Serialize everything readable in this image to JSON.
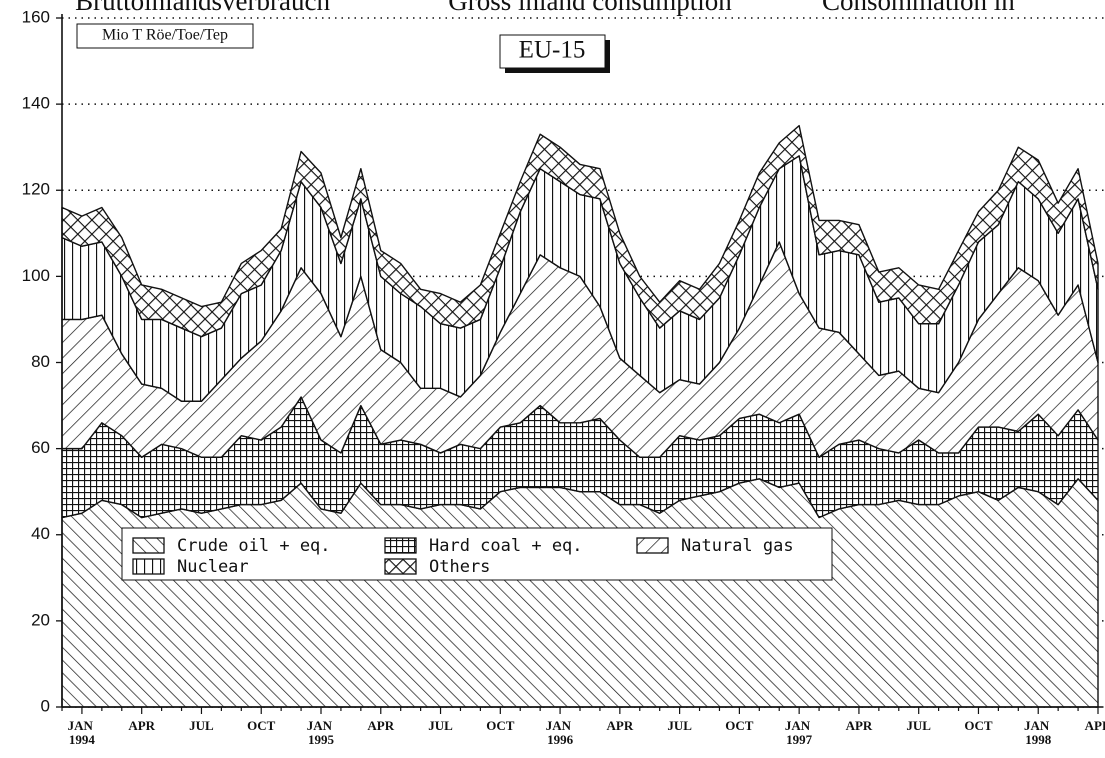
{
  "chart_data": {
    "type": "stacked_area",
    "headers": [
      "Bruttoinlandsverbrauch",
      "Gross inland consumption",
      "Consommation in"
    ],
    "unit_label": "Mio T Röe/Toe/Tep",
    "title": "EU-15",
    "categories": [
      null,
      "JAN 1994",
      null,
      null,
      "APR",
      null,
      null,
      "JUL",
      null,
      null,
      "OCT",
      null,
      null,
      "JAN 1995",
      null,
      null,
      "APR",
      null,
      null,
      "JUL",
      null,
      null,
      "OCT",
      null,
      null,
      "JAN 1996",
      null,
      null,
      "APR",
      null,
      null,
      "JUL",
      null,
      null,
      "OCT",
      null,
      null,
      "JAN 1997",
      null,
      null,
      "APR",
      null,
      null,
      "JUL",
      null,
      null,
      "OCT",
      null,
      null,
      "JAN 1998",
      null,
      null,
      "APR"
    ],
    "ylim": [
      0,
      160
    ],
    "yticks": [
      0,
      20,
      40,
      60,
      80,
      100,
      120,
      140,
      160
    ],
    "grid": true,
    "series": [
      {
        "name": "Crude oil + eq.",
        "color": "#111111",
        "hatch": "backslash",
        "values": [
          44,
          45,
          48,
          47,
          44,
          45,
          46,
          45,
          46,
          47,
          47,
          48,
          52,
          46,
          45,
          52,
          47,
          47,
          46,
          47,
          47,
          46,
          50,
          51,
          51,
          51,
          50,
          50,
          47,
          47,
          45,
          48,
          49,
          50,
          52,
          53,
          51,
          52,
          44,
          46,
          47,
          47,
          48,
          47,
          47,
          49,
          50,
          48,
          51,
          50,
          47,
          53,
          48
        ]
      },
      {
        "name": "Hard coal + eq.",
        "color": "#111111",
        "hatch": "grid",
        "values": [
          16,
          15,
          18,
          16,
          14,
          16,
          14,
          13,
          12,
          16,
          15,
          17,
          20,
          16,
          14,
          18,
          14,
          15,
          15,
          12,
          14,
          14,
          15,
          15,
          19,
          15,
          16,
          17,
          15,
          11,
          13,
          15,
          13,
          13,
          15,
          15,
          15,
          16,
          14,
          15,
          15,
          13,
          11,
          15,
          12,
          10,
          15,
          17,
          13,
          18,
          16,
          16,
          14
        ]
      },
      {
        "name": "Natural gas",
        "color": "#111111",
        "hatch": "slash",
        "values": [
          30,
          30,
          25,
          19,
          17,
          13,
          11,
          13,
          18,
          18,
          23,
          27,
          30,
          34,
          27,
          30,
          22,
          18,
          13,
          15,
          11,
          17,
          22,
          30,
          35,
          36,
          34,
          26,
          19,
          19,
          15,
          13,
          13,
          17,
          21,
          30,
          42,
          28,
          30,
          26,
          20,
          17,
          19,
          12,
          14,
          21,
          25,
          31,
          38,
          31,
          28,
          29,
          18
        ]
      },
      {
        "name": "Nuclear",
        "color": "#111111",
        "hatch": "vertical",
        "values": [
          19,
          17,
          17,
          18,
          15,
          16,
          17,
          15,
          12,
          15,
          13,
          14,
          20,
          20,
          17,
          18,
          17,
          16,
          19,
          15,
          16,
          13,
          15,
          19,
          20,
          20,
          19,
          25,
          22,
          18,
          15,
          16,
          15,
          15,
          17,
          18,
          17,
          32,
          17,
          19,
          23,
          17,
          17,
          15,
          16,
          18,
          18,
          16,
          20,
          19,
          19,
          20,
          17
        ]
      },
      {
        "name": "Others",
        "color": "#111111",
        "hatch": "cross",
        "values": [
          7,
          7,
          8,
          9,
          8,
          7,
          7,
          7,
          6,
          7,
          8,
          5,
          7,
          8,
          6,
          7,
          6,
          7,
          4,
          7,
          6,
          8,
          8,
          7,
          8,
          8,
          7,
          7,
          7,
          5,
          6,
          7,
          7,
          8,
          8,
          8,
          6,
          7,
          8,
          7,
          7,
          7,
          7,
          9,
          8,
          8,
          7,
          8,
          8,
          9,
          7,
          7,
          6
        ]
      }
    ]
  }
}
